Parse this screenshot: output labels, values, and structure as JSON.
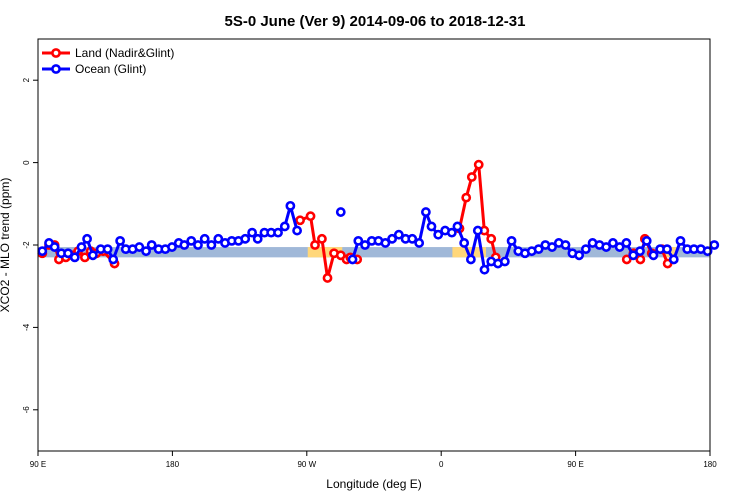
{
  "chart_data": {
    "type": "line",
    "title": "5S-0 June (Ver 9)   2014-09-06 to 2018-12-31",
    "xlabel": "Longitude (deg E)",
    "ylabel": "XCO2 - MLO trend (ppm)",
    "xlim": [
      90,
      450
    ],
    "ylim": [
      -7,
      3
    ],
    "x_ticks": [
      {
        "value": 90,
        "label": "90 E"
      },
      {
        "value": 162,
        "label": "180"
      },
      {
        "value": 234,
        "label": "90 W"
      },
      {
        "value": 306,
        "label": "0"
      },
      {
        "value": 378,
        "label": "90 E"
      },
      {
        "value": 450,
        "label": "180"
      }
    ],
    "y_ticks": [
      {
        "value": 2,
        "label": "2"
      },
      {
        "value": 0,
        "label": "0"
      },
      {
        "value": -2,
        "label": "-2"
      },
      {
        "value": -4,
        "label": "-4"
      },
      {
        "value": -6,
        "label": "-6"
      }
    ],
    "legend": {
      "position": "top-left",
      "entries": [
        {
          "name": "Land (Nadir&Glint)",
          "color": "#ff0000"
        },
        {
          "name": "Ocean (Glint)",
          "color": "#0000ff"
        }
      ]
    },
    "surface_band": {
      "y_range": [
        -2.3,
        -2.05
      ],
      "ocean_color": "#a0b8d8",
      "land_color": "#ffd77a",
      "land_segments": [
        [
          234.5,
          253
        ],
        [
          312,
          330
        ],
        [
          426,
          432
        ]
      ]
    },
    "series": [
      {
        "name": "Land (Nadir&Glint)",
        "color": "#ff0000",
        "segments": [
          [
            [
              92.3,
              -2.2
            ],
            [
              95.9,
              -2.0
            ],
            [
              98.9,
              -2.0
            ],
            [
              101.2,
              -2.35
            ],
            [
              104.9,
              -2.3
            ],
            [
              108.5,
              -2.25
            ],
            [
              111.5,
              -2.15
            ],
            [
              115.1,
              -2.3
            ],
            [
              118.2,
              -2.15
            ],
            [
              121.3,
              -2.2
            ],
            [
              124.9,
              -2.15
            ],
            [
              131,
              -2.45
            ]
          ],
          [
            [
              230.4,
              -1.4
            ],
            [
              236,
              -1.3
            ],
            [
              238.4,
              -2.0
            ],
            [
              242.1,
              -1.85
            ],
            [
              245.1,
              -2.8
            ],
            [
              248.6,
              -2.2
            ],
            [
              252.2,
              -2.25
            ],
            [
              255.3,
              -2.35
            ],
            [
              257.3,
              -2.3
            ],
            [
              261,
              -2.35
            ]
          ],
          [
            [
              315.8,
              -1.6
            ],
            [
              319.4,
              -0.85
            ],
            [
              322.4,
              -0.35
            ],
            [
              326.1,
              -0.05
            ],
            [
              329.1,
              -1.65
            ],
            [
              332.8,
              -1.85
            ],
            [
              335.2,
              -2.3
            ]
          ],
          [
            [
              405.4,
              -2.35
            ],
            [
              409,
              -2.2
            ],
            [
              412.7,
              -2.35
            ],
            [
              415.1,
              -1.85
            ],
            [
              418.8,
              -2.2
            ],
            [
              424.2,
              -2.1
            ],
            [
              427.3,
              -2.45
            ]
          ]
        ]
      },
      {
        "name": "Ocean (Glint)",
        "color": "#0000ff",
        "segments": [
          [
            [
              92.3,
              -2.15
            ],
            [
              95.9,
              -1.95
            ],
            [
              98.9,
              -2.05
            ],
            [
              102.5,
              -2.2
            ],
            [
              106.1,
              -2.2
            ],
            [
              109.7,
              -2.3
            ],
            [
              113.3,
              -2.05
            ],
            [
              116.3,
              -1.85
            ],
            [
              119.4,
              -2.25
            ],
            [
              123.6,
              -2.1
            ],
            [
              127.3,
              -2.1
            ],
            [
              130.3,
              -2.35
            ],
            [
              134,
              -1.9
            ],
            [
              137,
              -2.1
            ],
            [
              140.7,
              -2.1
            ],
            [
              144.3,
              -2.05
            ],
            [
              147.9,
              -2.15
            ],
            [
              150.9,
              -2.0
            ],
            [
              154.6,
              -2.1
            ],
            [
              158.2,
              -2.1
            ],
            [
              161.8,
              -2.05
            ],
            [
              165.4,
              -1.95
            ],
            [
              168.4,
              -2.0
            ],
            [
              172.1,
              -1.9
            ],
            [
              175.7,
              -2.0
            ],
            [
              179.3,
              -1.85
            ],
            [
              182.9,
              -2.0
            ],
            [
              186.6,
              -1.85
            ],
            [
              190.2,
              -1.95
            ],
            [
              193.8,
              -1.9
            ],
            [
              197.4,
              -1.9
            ],
            [
              201,
              -1.85
            ],
            [
              204.7,
              -1.7
            ],
            [
              207.7,
              -1.85
            ],
            [
              211.3,
              -1.7
            ],
            [
              214.9,
              -1.7
            ],
            [
              218.6,
              -1.7
            ],
            [
              222.2,
              -1.55
            ],
            [
              225.2,
              -1.05
            ],
            [
              228.8,
              -1.65
            ]
          ],
          [
            [
              252.2,
              -1.2
            ]
          ],
          [
            [
              258.5,
              -2.35
            ],
            [
              261.6,
              -1.9
            ],
            [
              265.2,
              -2.0
            ],
            [
              268.8,
              -1.9
            ],
            [
              272.4,
              -1.9
            ],
            [
              276.1,
              -1.95
            ],
            [
              279.7,
              -1.85
            ],
            [
              283.3,
              -1.75
            ],
            [
              286.9,
              -1.85
            ],
            [
              290.5,
              -1.85
            ],
            [
              294.2,
              -1.95
            ],
            [
              297.8,
              -1.2
            ],
            [
              300.8,
              -1.55
            ],
            [
              304.4,
              -1.75
            ],
            [
              308.1,
              -1.65
            ],
            [
              311.7,
              -1.7
            ],
            [
              314.7,
              -1.55
            ],
            [
              318.3,
              -1.95
            ],
            [
              321.9,
              -2.35
            ],
            [
              325.6,
              -1.65
            ],
            [
              329.2,
              -2.6
            ],
            [
              332.8,
              -2.4
            ],
            [
              336.4,
              -2.45
            ],
            [
              340.1,
              -2.4
            ],
            [
              343.7,
              -1.9
            ],
            [
              347.3,
              -2.15
            ],
            [
              350.9,
              -2.2
            ],
            [
              354.5,
              -2.15
            ],
            [
              358.2,
              -2.1
            ],
            [
              361.8,
              -2.0
            ],
            [
              365.4,
              -2.05
            ],
            [
              369,
              -1.95
            ],
            [
              372.6,
              -2.0
            ],
            [
              376.3,
              -2.2
            ],
            [
              379.9,
              -2.25
            ],
            [
              383.5,
              -2.1
            ],
            [
              387.1,
              -1.95
            ],
            [
              390.8,
              -2.0
            ],
            [
              394.4,
              -2.05
            ],
            [
              398,
              -1.95
            ],
            [
              401.6,
              -2.05
            ],
            [
              405.2,
              -1.95
            ],
            [
              408.9,
              -2.25
            ],
            [
              412.5,
              -2.15
            ],
            [
              416.1,
              -1.9
            ],
            [
              419.7,
              -2.25
            ],
            [
              423.3,
              -2.1
            ],
            [
              427,
              -2.1
            ],
            [
              430.6,
              -2.35
            ],
            [
              434.2,
              -1.9
            ],
            [
              437.8,
              -2.1
            ],
            [
              441.4,
              -2.1
            ],
            [
              445.1,
              -2.1
            ],
            [
              448.7,
              -2.15
            ],
            [
              452.3,
              -2.0
            ]
          ]
        ]
      }
    ]
  }
}
